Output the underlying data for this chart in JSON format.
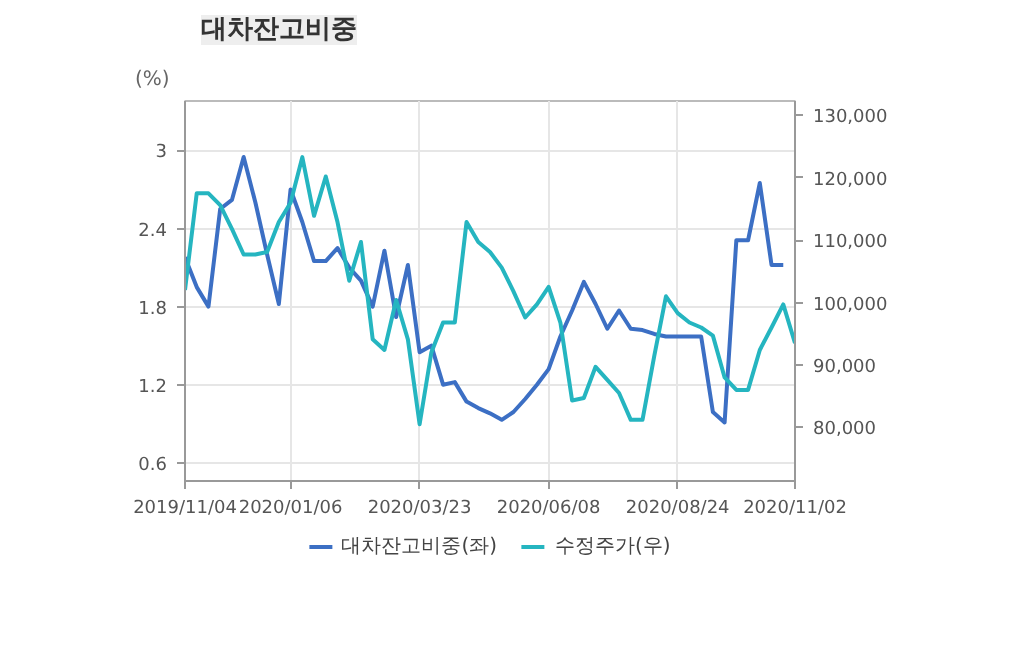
{
  "chart_data": {
    "type": "line",
    "title": "대차잔고비중",
    "ylabel": "(%)",
    "x": [
      "2019-11-04",
      "2019-11-11",
      "2019-11-18",
      "2019-11-25",
      "2019-12-02",
      "2019-12-09",
      "2019-12-16",
      "2019-12-23",
      "2019-12-30",
      "2020-01-06",
      "2020-01-13",
      "2020-01-20",
      "2020-01-27",
      "2020-02-03",
      "2020-02-10",
      "2020-02-17",
      "2020-02-24",
      "2020-03-02",
      "2020-03-09",
      "2020-03-16",
      "2020-03-23",
      "2020-03-30",
      "2020-04-06",
      "2020-04-13",
      "2020-04-20",
      "2020-04-27",
      "2020-05-04",
      "2020-05-11",
      "2020-05-18",
      "2020-05-25",
      "2020-06-01",
      "2020-06-08",
      "2020-06-15",
      "2020-06-22",
      "2020-06-29",
      "2020-07-06",
      "2020-07-13",
      "2020-07-20",
      "2020-07-27",
      "2020-08-03",
      "2020-08-10",
      "2020-08-17",
      "2020-08-24",
      "2020-08-31",
      "2020-09-07",
      "2020-09-14",
      "2020-09-21",
      "2020-09-28",
      "2020-10-05",
      "2020-10-12",
      "2020-10-19",
      "2020-10-26",
      "2020-11-02"
    ],
    "series": [
      {
        "name": "대차잔고비중(좌)",
        "color": "#3c6fc4",
        "values": [
          2.18,
          1.95,
          1.8,
          2.55,
          2.62,
          2.95,
          2.6,
          2.2,
          1.82,
          2.7,
          2.45,
          2.15,
          2.15,
          2.25,
          2.1,
          2.0,
          1.8,
          2.23,
          1.72,
          2.12,
          1.45,
          1.5,
          1.2,
          1.22,
          1.07,
          1.02,
          0.98,
          0.93,
          0.99,
          1.09,
          1.2,
          1.32,
          1.57,
          1.77,
          1.99,
          1.82,
          1.63,
          1.77,
          1.63,
          1.62,
          1.59,
          1.57,
          1.57,
          1.57,
          1.57,
          0.99,
          0.91,
          2.31,
          2.31,
          2.75,
          2.12,
          2.12,
          null
        ]
      },
      {
        "name": "수정주가(우)",
        "color": "#25b5c0",
        "axis": "y2",
        "values": [
          102000,
          117500,
          117500,
          115600,
          111800,
          107700,
          107700,
          108100,
          112900,
          116000,
          123300,
          113900,
          120200,
          112900,
          103500,
          109700,
          94100,
          92400,
          100400,
          94100,
          80500,
          92000,
          96800,
          96800,
          112900,
          109700,
          108100,
          105600,
          101800,
          97600,
          99700,
          102500,
          96800,
          84300,
          84700,
          89700,
          87600,
          85500,
          81200,
          81200,
          91400,
          101000,
          98300,
          96800,
          96000,
          94700,
          88000,
          86000,
          86000,
          92400,
          96000,
          99700,
          93500
        ]
      }
    ],
    "xlim": [
      "2019-11-04",
      "2020-11-02"
    ],
    "xticks": [
      {
        "value": "2019-11-04",
        "label": "2019/11/04"
      },
      {
        "value": "2020-01-06",
        "label": "2020/01/06"
      },
      {
        "value": "2020-03-23",
        "label": "2020/03/23"
      },
      {
        "value": "2020-06-08",
        "label": "2020/06/08"
      },
      {
        "value": "2020-08-24",
        "label": "2020/08/24"
      },
      {
        "value": "2020-11-02",
        "label": "2020/11/02"
      }
    ],
    "ylim": [
      0.46,
      3.38
    ],
    "yticks": [
      0.6,
      1.2,
      1.8,
      2.4,
      3
    ],
    "y2lim": [
      71400,
      132300
    ],
    "y2ticks": [
      {
        "value": 80000,
        "label": "80,000"
      },
      {
        "value": 90000,
        "label": "90,000"
      },
      {
        "value": 100000,
        "label": "100,000"
      },
      {
        "value": 110000,
        "label": "110,000"
      },
      {
        "value": 120000,
        "label": "120,000"
      },
      {
        "value": 130000,
        "label": "130,000"
      }
    ],
    "grid": true,
    "legend": "bottom",
    "marker": "none",
    "line_style": "solid"
  }
}
